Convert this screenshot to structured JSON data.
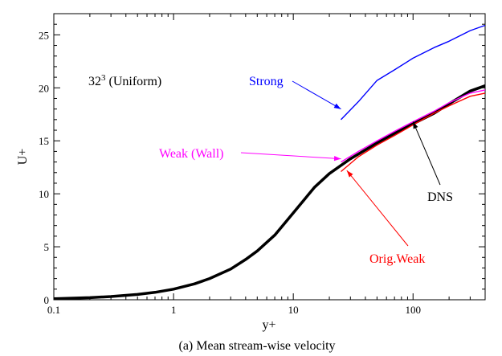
{
  "chart_data": {
    "type": "line",
    "title": "",
    "caption": "(a) Mean stream-wise velocity",
    "xlabel": "y+",
    "ylabel": "U+",
    "xscale": "log",
    "xlim": [
      0.1,
      400
    ],
    "ylim": [
      0,
      27
    ],
    "grid": false,
    "x_ticks": [
      {
        "value": 0.1,
        "label": "0.1"
      },
      {
        "value": 1,
        "label": "1"
      },
      {
        "value": 10,
        "label": "10"
      },
      {
        "value": 100,
        "label": "100"
      }
    ],
    "y_ticks": [
      {
        "value": 0,
        "label": "0"
      },
      {
        "value": 5,
        "label": "5"
      },
      {
        "value": 10,
        "label": "10"
      },
      {
        "value": 15,
        "label": "15"
      },
      {
        "value": 20,
        "label": "20"
      },
      {
        "value": 25,
        "label": "25"
      }
    ],
    "case_label": {
      "base": "32",
      "superscript": "3",
      "rest": " (Uniform)"
    },
    "series": [
      {
        "name": "DNS",
        "color": "#000000",
        "x": [
          0.1,
          0.2,
          0.3,
          0.5,
          0.7,
          1,
          1.5,
          2,
          3,
          4,
          5,
          7,
          10,
          15,
          20,
          30,
          50,
          70,
          100,
          150,
          200,
          300,
          400
        ],
        "y": [
          0.1,
          0.2,
          0.3,
          0.5,
          0.7,
          1.0,
          1.5,
          2.0,
          2.9,
          3.8,
          4.6,
          6.1,
          8.2,
          10.6,
          11.9,
          13.3,
          14.8,
          15.7,
          16.6,
          17.6,
          18.5,
          19.7,
          20.2
        ]
      },
      {
        "name": "Strong",
        "color": "#0000ff",
        "x": [
          25,
          35,
          50,
          70,
          100,
          150,
          200,
          300,
          400
        ],
        "y": [
          17.0,
          18.7,
          20.7,
          21.7,
          22.8,
          23.8,
          24.4,
          25.4,
          25.9
        ]
      },
      {
        "name": "Weak (Wall)",
        "color": "#ff00ff",
        "x": [
          25,
          35,
          50,
          70,
          100,
          150,
          200,
          300,
          400
        ],
        "y": [
          13.0,
          14.0,
          15.0,
          15.9,
          16.8,
          17.8,
          18.6,
          19.5,
          19.8
        ]
      },
      {
        "name": "Orig.Weak",
        "color": "#ff0000",
        "x": [
          25,
          35,
          50,
          70,
          100,
          150,
          200,
          300,
          400
        ],
        "y": [
          12.1,
          13.5,
          14.6,
          15.5,
          16.5,
          17.6,
          18.3,
          19.2,
          19.5
        ]
      }
    ],
    "annotations": [
      {
        "text": "Strong",
        "color": "#0000ff",
        "arrow_to": {
          "x": 25,
          "y": 18.0
        }
      },
      {
        "text": "Weak (Wall)",
        "color": "#ff00ff",
        "arrow_to": {
          "x": 25,
          "y": 13.3
        }
      },
      {
        "text": "DNS",
        "color": "#000000",
        "arrow_to": {
          "x": 100,
          "y": 16.8
        }
      },
      {
        "text": "Orig.Weak",
        "color": "#ff0000",
        "arrow_to": {
          "x": 28,
          "y": 12.2
        }
      }
    ]
  }
}
